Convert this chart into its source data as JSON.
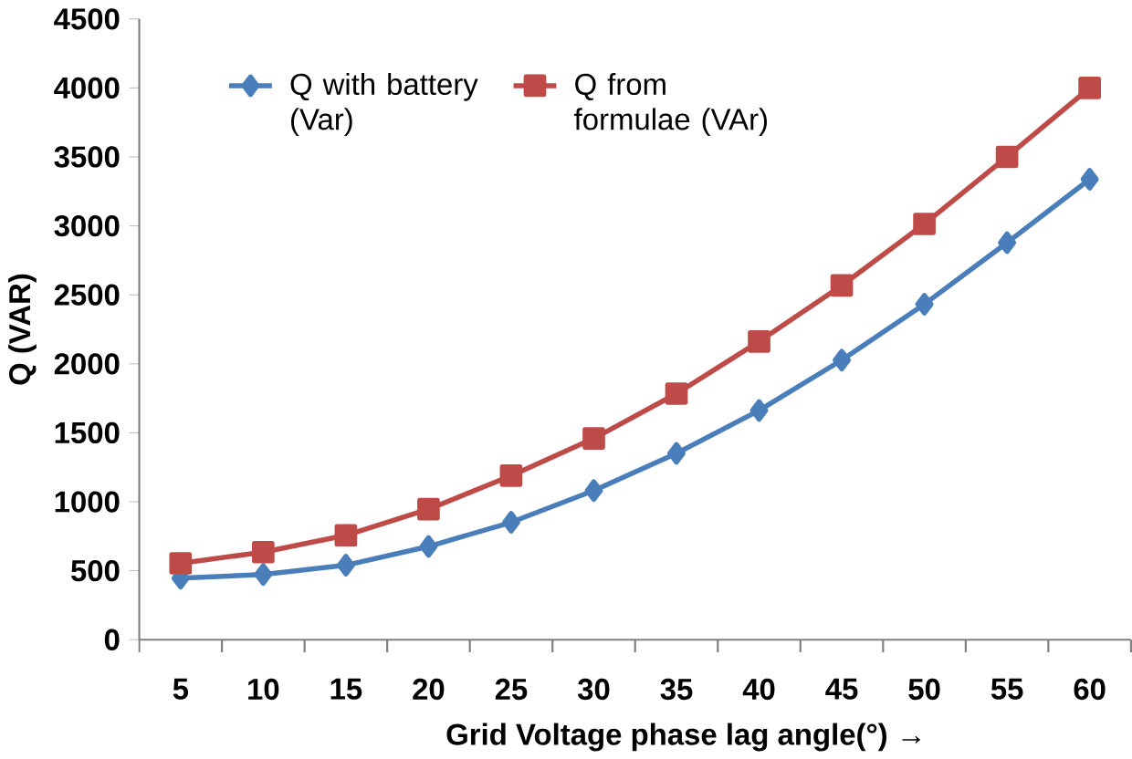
{
  "chart_data": {
    "type": "line",
    "xlabel": "Grid Voltage phase lag angle(°)   →",
    "ylabel": "Q (VAR)",
    "categories": [
      "5",
      "10",
      "15",
      "20",
      "25",
      "30",
      "35",
      "40",
      "45",
      "50",
      "55",
      "60"
    ],
    "series": [
      {
        "name": "Q with battery (Var)",
        "color": "#4a7ebb",
        "marker": "diamond",
        "values": [
          446,
          473,
          540,
          676,
          851,
          1081,
          1351,
          1662,
          2027,
          2432,
          2878,
          3338
        ]
      },
      {
        "name": "Q from formulae (VAr)",
        "color": "#be4b48",
        "marker": "square",
        "values": [
          554,
          635,
          757,
          946,
          1189,
          1459,
          1784,
          2162,
          2568,
          3014,
          3500,
          4000
        ]
      }
    ],
    "ylim": [
      0,
      4500
    ],
    "yticks": [
      0,
      500,
      1000,
      1500,
      2000,
      2500,
      3000,
      3500,
      4000,
      4500
    ],
    "grid": false,
    "legend": "top left"
  }
}
